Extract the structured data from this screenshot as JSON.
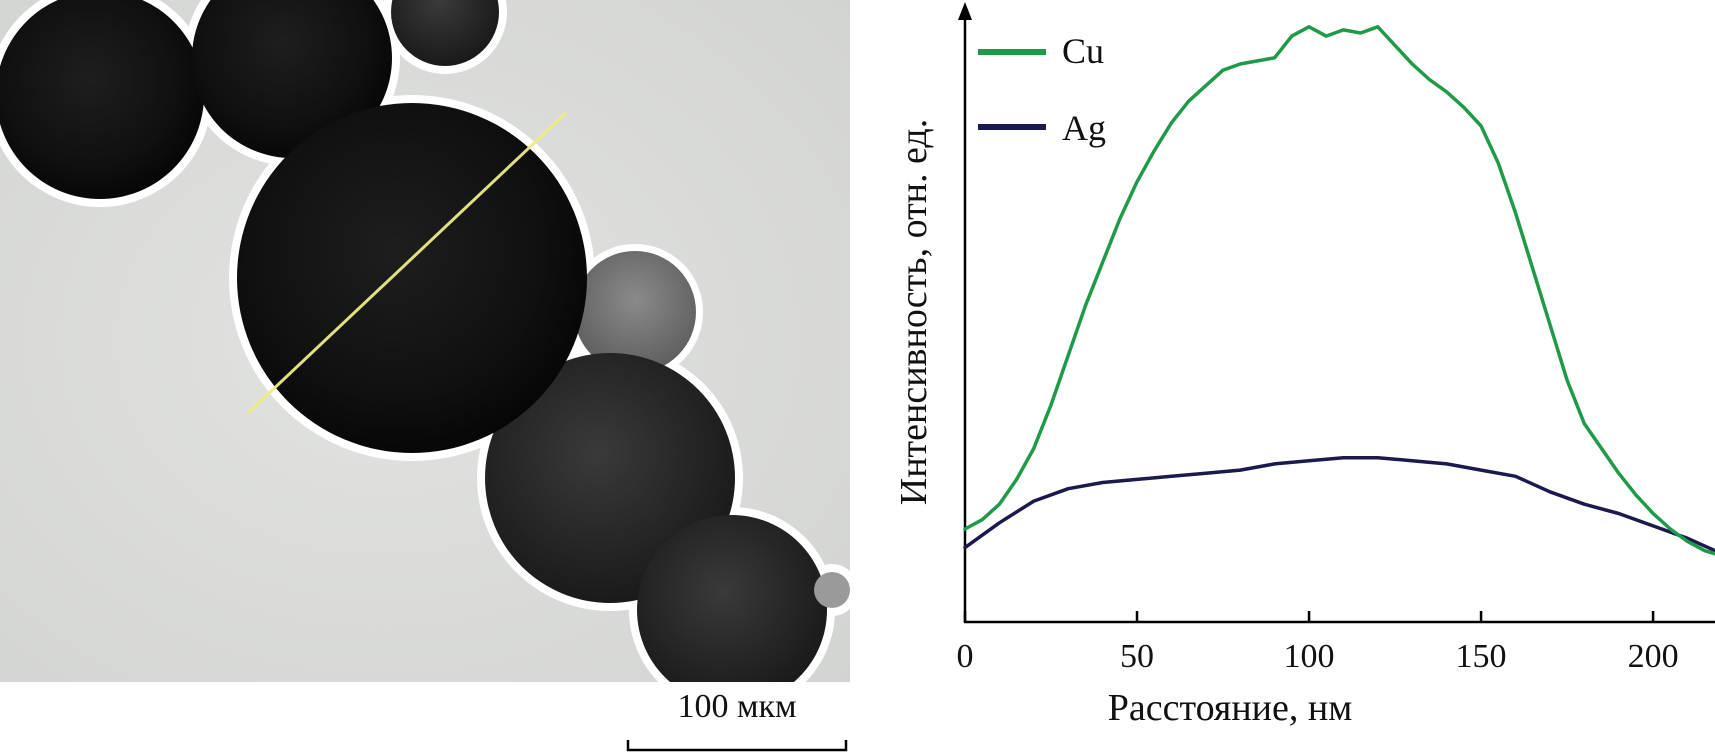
{
  "micrograph": {
    "scale_bar_label": "100 мкм"
  },
  "chart_data": {
    "type": "line",
    "title": "",
    "xlabel": "Расстояние, нм",
    "ylabel": "Интенсивность, отн. ед.",
    "xlim": [
      0,
      218
    ],
    "ylim": [
      0,
      100
    ],
    "x_ticks": [
      0,
      50,
      100,
      150,
      200
    ],
    "x_tick_labels": [
      "0",
      "50",
      "100",
      "150",
      "200"
    ],
    "y_ticks_shown": false,
    "grid": false,
    "legend_position": "top-left",
    "series": [
      {
        "name": "Cu",
        "color": "#1f9a48",
        "x": [
          0,
          5,
          10,
          15,
          20,
          25,
          30,
          35,
          40,
          45,
          50,
          55,
          60,
          65,
          70,
          75,
          80,
          85,
          90,
          95,
          100,
          105,
          110,
          115,
          120,
          125,
          130,
          135,
          140,
          145,
          150,
          155,
          160,
          165,
          170,
          175,
          180,
          185,
          190,
          195,
          200,
          205,
          210,
          215,
          218
        ],
        "values": [
          15,
          16.5,
          19,
          23,
          28,
          35,
          43,
          51,
          58,
          65,
          71,
          76,
          80.5,
          84,
          86.5,
          89,
          90,
          90.5,
          91,
          94.5,
          96,
          94.5,
          95.5,
          95,
          96,
          93,
          90,
          87.5,
          85.5,
          83,
          80,
          74,
          66,
          57,
          48,
          39,
          32,
          28,
          24,
          20.5,
          17.5,
          15,
          13,
          11.5,
          11
        ]
      },
      {
        "name": "Ag",
        "color": "#1b1a4e",
        "x": [
          0,
          10,
          20,
          30,
          40,
          50,
          60,
          70,
          80,
          90,
          100,
          110,
          120,
          130,
          140,
          150,
          160,
          170,
          180,
          190,
          200,
          210,
          218
        ],
        "values": [
          12,
          16,
          19.5,
          21.5,
          22.5,
          23,
          23.5,
          24,
          24.5,
          25.5,
          26,
          26.5,
          26.5,
          26,
          25.5,
          24.5,
          23.5,
          21,
          19,
          17.5,
          15.5,
          13.5,
          11.5
        ]
      }
    ]
  }
}
